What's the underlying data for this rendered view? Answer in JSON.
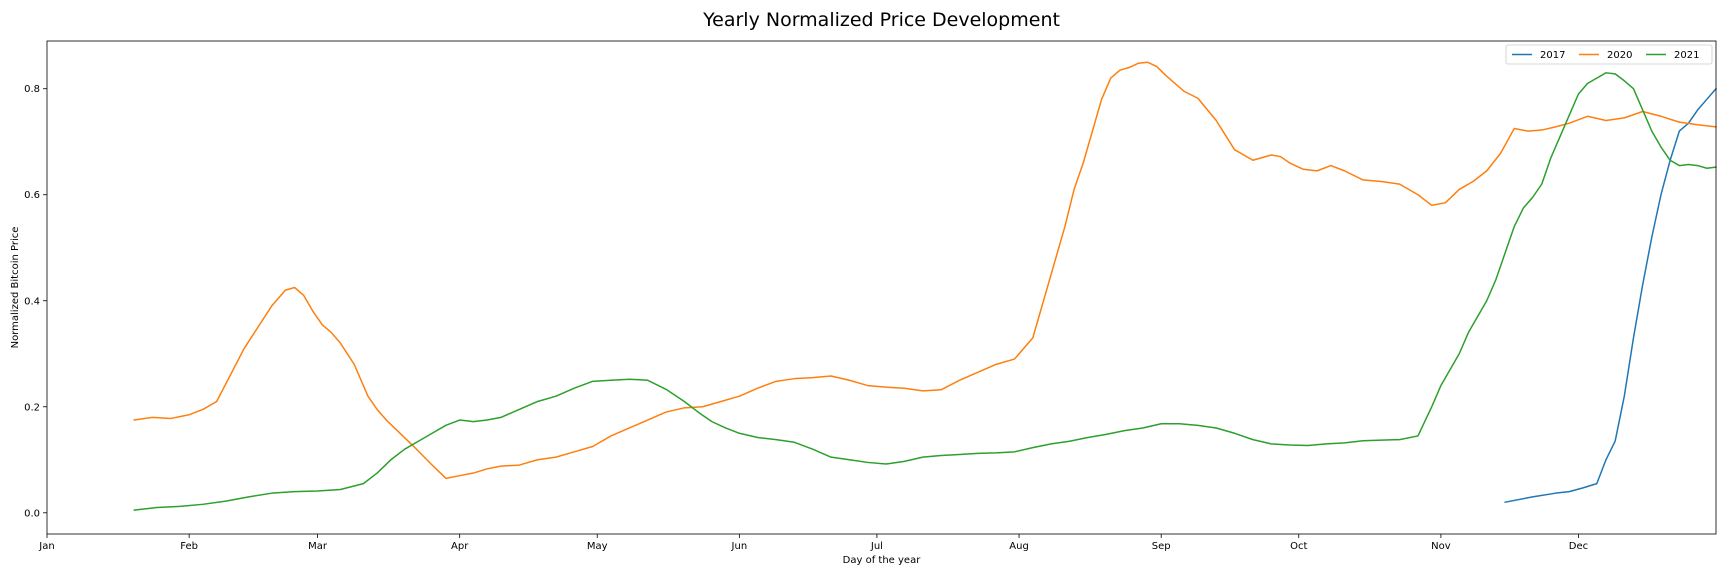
{
  "chart_data": {
    "type": "line",
    "title": "Yearly Normalized Price Development",
    "xlabel": "Day of the year",
    "ylabel": "Normalized Bitcoin Price",
    "x_unit": "day_of_year",
    "xlim": [
      1,
      365
    ],
    "ylim": [
      -0.04,
      0.89
    ],
    "x_ticks": [
      {
        "label": "Jan",
        "day": 1
      },
      {
        "label": "Feb",
        "day": 32
      },
      {
        "label": "Mar",
        "day": 60
      },
      {
        "label": "Apr",
        "day": 91
      },
      {
        "label": "May",
        "day": 121
      },
      {
        "label": "Jun",
        "day": 152
      },
      {
        "label": "Jul",
        "day": 182
      },
      {
        "label": "Aug",
        "day": 213
      },
      {
        "label": "Sep",
        "day": 244
      },
      {
        "label": "Oct",
        "day": 274
      },
      {
        "label": "Nov",
        "day": 305
      },
      {
        "label": "Dec",
        "day": 335
      }
    ],
    "y_ticks": [
      0.0,
      0.2,
      0.4,
      0.6,
      0.8
    ],
    "grid": false,
    "legend_position": "top-right",
    "series": [
      {
        "name": "2017",
        "color": "#1f77b4",
        "x": [
          319,
          325,
          330,
          333,
          336,
          339,
          341,
          343,
          345,
          347,
          349,
          351,
          353,
          355,
          357,
          359,
          361,
          363,
          365
        ],
        "y": [
          0.02,
          0.03,
          0.037,
          0.04,
          0.047,
          0.055,
          0.1,
          0.135,
          0.22,
          0.33,
          0.43,
          0.52,
          0.6,
          0.665,
          0.72,
          0.735,
          0.76,
          0.78,
          0.8
        ]
      },
      {
        "name": "2020",
        "color": "#ff7f0e",
        "x": [
          20,
          24,
          28,
          32,
          35,
          38,
          41,
          44,
          47,
          50,
          53,
          55,
          57,
          59,
          61,
          63,
          65,
          68,
          71,
          73,
          75,
          78,
          81,
          85,
          88,
          91,
          94,
          97,
          100,
          104,
          108,
          112,
          116,
          120,
          124,
          128,
          132,
          136,
          140,
          144,
          148,
          152,
          156,
          160,
          164,
          168,
          172,
          176,
          180,
          184,
          188,
          192,
          196,
          200,
          204,
          208,
          212,
          216,
          219,
          221,
          223,
          225,
          227,
          229,
          231,
          233,
          235,
          237,
          239,
          241,
          243,
          245,
          247,
          249,
          252,
          256,
          260,
          264,
          266,
          268,
          270,
          272,
          275,
          278,
          281,
          284,
          288,
          292,
          296,
          300,
          303,
          306,
          309,
          312,
          315,
          318,
          321,
          324,
          327,
          330,
          333,
          337,
          341,
          345,
          349,
          353,
          357,
          361,
          365
        ],
        "y": [
          0.175,
          0.18,
          0.178,
          0.185,
          0.195,
          0.21,
          0.26,
          0.31,
          0.35,
          0.39,
          0.42,
          0.425,
          0.41,
          0.38,
          0.355,
          0.34,
          0.32,
          0.28,
          0.22,
          0.195,
          0.175,
          0.15,
          0.125,
          0.09,
          0.065,
          0.07,
          0.075,
          0.083,
          0.088,
          0.09,
          0.1,
          0.105,
          0.115,
          0.125,
          0.145,
          0.16,
          0.175,
          0.19,
          0.198,
          0.2,
          0.21,
          0.22,
          0.235,
          0.248,
          0.253,
          0.255,
          0.258,
          0.25,
          0.24,
          0.237,
          0.235,
          0.23,
          0.232,
          0.25,
          0.265,
          0.28,
          0.29,
          0.33,
          0.42,
          0.48,
          0.54,
          0.61,
          0.66,
          0.72,
          0.78,
          0.82,
          0.835,
          0.84,
          0.848,
          0.85,
          0.842,
          0.825,
          0.81,
          0.795,
          0.782,
          0.74,
          0.685,
          0.665,
          0.67,
          0.675,
          0.672,
          0.66,
          0.648,
          0.645,
          0.655,
          0.645,
          0.628,
          0.625,
          0.62,
          0.6,
          0.58,
          0.585,
          0.61,
          0.625,
          0.645,
          0.678,
          0.725,
          0.72,
          0.722,
          0.728,
          0.735,
          0.748,
          0.74,
          0.745,
          0.757,
          0.748,
          0.737,
          0.732,
          0.728
        ]
      },
      {
        "name": "2021",
        "color": "#2ca02c",
        "x": [
          20,
          25,
          30,
          35,
          40,
          45,
          50,
          55,
          60,
          65,
          70,
          73,
          76,
          79,
          82,
          85,
          88,
          91,
          94,
          97,
          100,
          104,
          108,
          112,
          116,
          120,
          124,
          128,
          132,
          136,
          140,
          143,
          146,
          149,
          152,
          156,
          160,
          164,
          168,
          172,
          176,
          180,
          184,
          188,
          192,
          196,
          200,
          204,
          208,
          212,
          216,
          220,
          224,
          228,
          232,
          236,
          240,
          244,
          248,
          252,
          256,
          260,
          264,
          268,
          272,
          276,
          280,
          284,
          288,
          292,
          296,
          300,
          303,
          305,
          307,
          309,
          311,
          313,
          315,
          317,
          319,
          321,
          323,
          325,
          327,
          329,
          331,
          333,
          335,
          337,
          339,
          341,
          343,
          345,
          347,
          349,
          351,
          353,
          355,
          357,
          359,
          361,
          363,
          365
        ],
        "y": [
          0.005,
          0.01,
          0.012,
          0.016,
          0.022,
          0.03,
          0.037,
          0.04,
          0.041,
          0.044,
          0.055,
          0.075,
          0.1,
          0.12,
          0.135,
          0.15,
          0.165,
          0.175,
          0.172,
          0.175,
          0.18,
          0.195,
          0.21,
          0.22,
          0.235,
          0.248,
          0.25,
          0.252,
          0.25,
          0.233,
          0.21,
          0.19,
          0.172,
          0.16,
          0.15,
          0.142,
          0.138,
          0.133,
          0.12,
          0.105,
          0.1,
          0.095,
          0.092,
          0.097,
          0.105,
          0.108,
          0.11,
          0.112,
          0.113,
          0.115,
          0.123,
          0.13,
          0.135,
          0.142,
          0.148,
          0.155,
          0.16,
          0.168,
          0.168,
          0.165,
          0.16,
          0.15,
          0.138,
          0.13,
          0.128,
          0.127,
          0.13,
          0.132,
          0.136,
          0.137,
          0.138,
          0.145,
          0.2,
          0.24,
          0.27,
          0.3,
          0.34,
          0.37,
          0.4,
          0.44,
          0.49,
          0.54,
          0.575,
          0.595,
          0.62,
          0.67,
          0.71,
          0.75,
          0.79,
          0.81,
          0.82,
          0.83,
          0.828,
          0.815,
          0.8,
          0.76,
          0.72,
          0.69,
          0.665,
          0.655,
          0.657,
          0.655,
          0.65,
          0.652
        ]
      }
    ]
  }
}
